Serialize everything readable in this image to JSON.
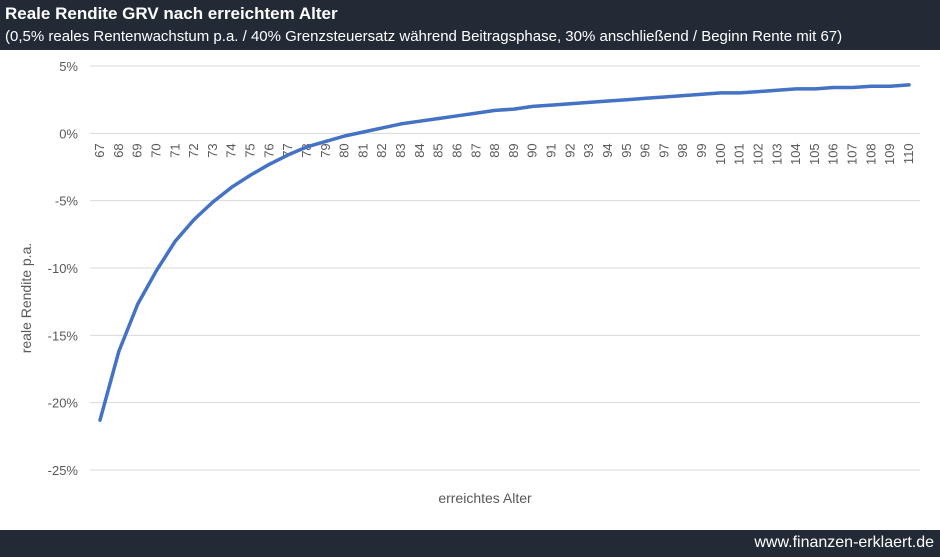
{
  "header": {
    "title": "Reale Rendite GRV nach erreichtem Alter",
    "subtitle": "(0,5% reales Rentenwachstum p.a. / 40% Grenzsteuersatz während Beitragsphase, 30% anschließend / Beginn Rente mit 67)"
  },
  "footer": {
    "site": "www.finanzen-erklaert.de"
  },
  "colors": {
    "header_bg": "#222a35",
    "line": "#4472c4",
    "grid": "#d9d9d9"
  },
  "chart_data": {
    "type": "line",
    "title": "Reale Rendite GRV nach erreichtem Alter",
    "xlabel": "erreichtes Alter",
    "ylabel": "reale Rendite p.a.",
    "ylim": [
      -25,
      5
    ],
    "yticks": [
      5,
      0,
      -5,
      -10,
      -15,
      -20,
      -25
    ],
    "ytick_labels": [
      "5%",
      "0%",
      "-5%",
      "-10%",
      "-15%",
      "-20%",
      "-25%"
    ],
    "grid": true,
    "categories": [
      "67",
      "68",
      "69",
      "70",
      "71",
      "72",
      "73",
      "74",
      "75",
      "76",
      "77",
      "78",
      "79",
      "80",
      "81",
      "82",
      "83",
      "84",
      "85",
      "86",
      "87",
      "88",
      "89",
      "90",
      "91",
      "92",
      "93",
      "94",
      "95",
      "96",
      "97",
      "98",
      "99",
      "100",
      "101",
      "102",
      "103",
      "104",
      "105",
      "106",
      "107",
      "108",
      "109",
      "110"
    ],
    "series": [
      {
        "values": [
          -21.3,
          -16.2,
          -12.7,
          -10.2,
          -8.0,
          -6.4,
          -5.1,
          -4.0,
          -3.1,
          -2.3,
          -1.6,
          -1.0,
          -0.6,
          -0.2,
          0.1,
          0.4,
          0.7,
          0.9,
          1.1,
          1.3,
          1.5,
          1.7,
          1.8,
          2.0,
          2.1,
          2.2,
          2.3,
          2.4,
          2.5,
          2.6,
          2.7,
          2.8,
          2.9,
          3.0,
          3.0,
          3.1,
          3.2,
          3.3,
          3.3,
          3.4,
          3.4,
          3.5,
          3.5,
          3.6
        ]
      }
    ]
  }
}
